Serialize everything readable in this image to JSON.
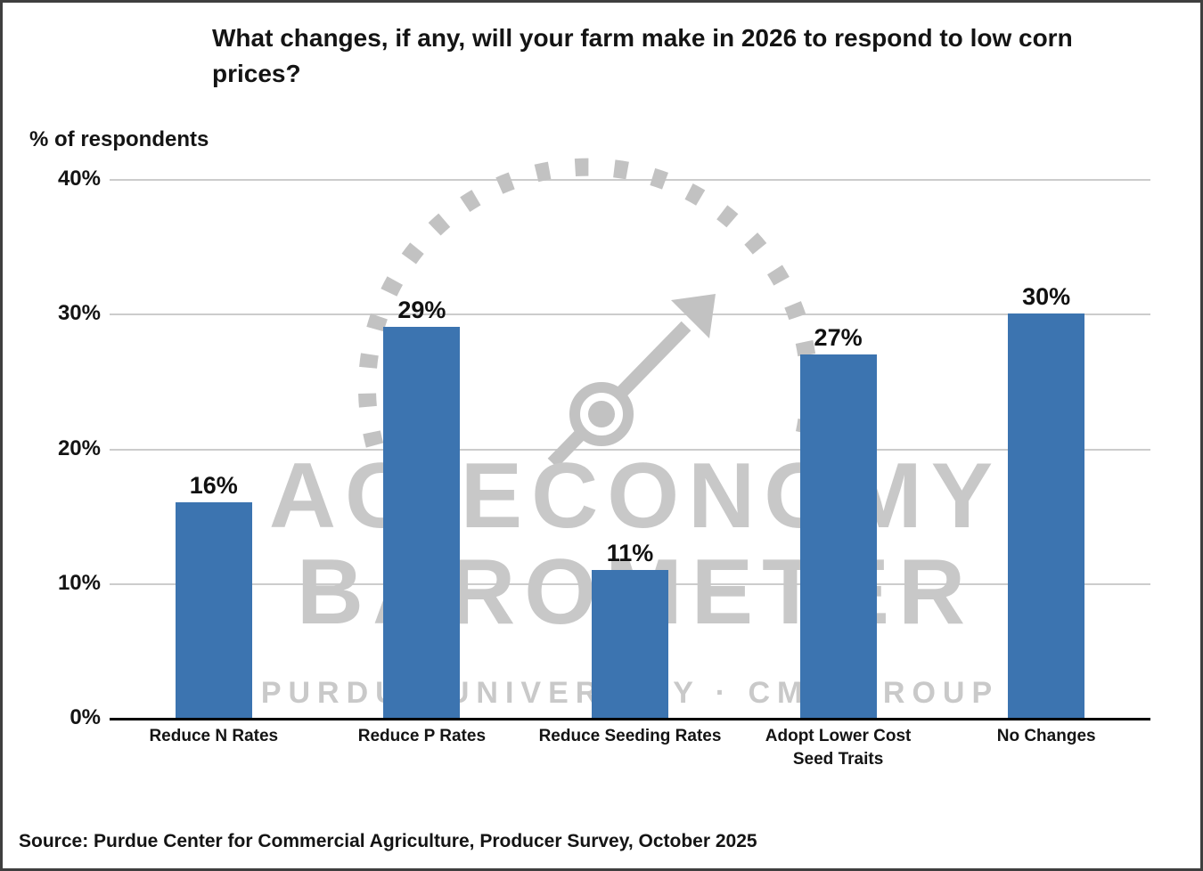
{
  "title": "What changes, if any, will your farm make in 2026 to respond to low corn prices?",
  "y_axis_label": "% of respondents",
  "source": "Source: Purdue Center for Commercial Agriculture, Producer Survey, October 2025",
  "watermark": {
    "line1": "AG ECONOMY",
    "line2": "BAROMETER",
    "line3": "PURDUE UNIVERSITY · CME GROUP",
    "icon": "barometer-gauge-icon"
  },
  "colors": {
    "bar": "#3c74b0",
    "gridline": "#cccccc",
    "axis": "#000000",
    "watermark": "#c8c8c8"
  },
  "chart_data": {
    "type": "bar",
    "categories": [
      "Reduce N Rates",
      "Reduce P Rates",
      "Reduce Seeding Rates",
      "Adopt Lower Cost Seed Traits",
      "No Changes"
    ],
    "values": [
      16,
      29,
      11,
      27,
      30
    ],
    "value_labels": [
      "16%",
      "29%",
      "11%",
      "27%",
      "30%"
    ],
    "title": "What changes, if any, will your farm make in 2026 to respond to low corn prices?",
    "xlabel": "",
    "ylabel": "% of respondents",
    "ylim": [
      0,
      40
    ],
    "yticks": [
      0,
      10,
      20,
      30,
      40
    ],
    "ytick_labels": [
      "0%",
      "10%",
      "20%",
      "30%",
      "40%"
    ],
    "grid": true,
    "legend": false
  }
}
